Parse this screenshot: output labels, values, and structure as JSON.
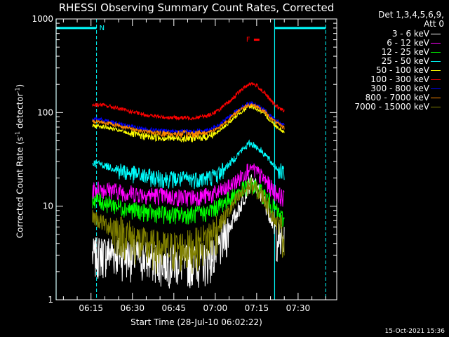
{
  "chart_data": {
    "type": "line",
    "title": "RHESSI Observing Summary Count Rates, Corrected",
    "xlabel": "Start Time (28-Jul-10 06:02:22)",
    "ylabel": "Corrected Count Rate (s^-1 detector^-1)",
    "y_scale": "log",
    "ylim": [
      1,
      1000
    ],
    "xlim": [
      "06:02:22",
      "07:44:00"
    ],
    "x_ticks": [
      "06:15",
      "06:30",
      "06:45",
      "07:00",
      "07:15",
      "07:30"
    ],
    "y_ticks": [
      "1",
      "10",
      "100",
      "1000"
    ],
    "detectors": "Det 1,3,4,5,6,9,",
    "attenuator": "Att 0",
    "timestamp": "15-Oct-2021 15:36",
    "data_interval": [
      "06:15:30",
      "07:25:00"
    ],
    "series": [
      {
        "name": "3 - 6 keV",
        "color": "#ffffff",
        "x": [
          "06:15:30",
          "06:18",
          "06:22",
          "06:28",
          "06:34",
          "06:40",
          "06:46",
          "06:52",
          "06:57",
          "07:01",
          "07:05",
          "07:09",
          "07:12",
          "07:13",
          "07:15",
          "07:18",
          "07:20",
          "07:22",
          "07:25"
        ],
        "y": [
          3,
          3.2,
          3.3,
          3.1,
          2.9,
          2.7,
          2.6,
          2.6,
          2.7,
          3.5,
          6,
          10,
          17,
          18,
          16,
          11,
          8,
          5,
          4
        ]
      },
      {
        "name": "6 - 12 keV",
        "color": "#ff00ff",
        "x": [
          "06:15:30",
          "06:18",
          "06:22",
          "06:28",
          "06:34",
          "06:40",
          "06:46",
          "06:52",
          "06:57",
          "07:01",
          "07:05",
          "07:09",
          "07:12",
          "07:13",
          "07:15",
          "07:18",
          "07:20",
          "07:22",
          "07:25"
        ],
        "y": [
          15,
          15.5,
          15,
          14,
          13.5,
          13,
          12.5,
          12.5,
          13,
          14,
          16,
          20,
          25,
          26,
          23,
          19,
          16,
          14,
          12
        ]
      },
      {
        "name": "12 - 25 keV",
        "color": "#00ff00",
        "x": [
          "06:15:30",
          "06:18",
          "06:22",
          "06:28",
          "06:34",
          "06:40",
          "06:46",
          "06:52",
          "06:57",
          "07:01",
          "07:05",
          "07:09",
          "07:12",
          "07:13",
          "07:15",
          "07:18",
          "07:20",
          "07:22",
          "07:25"
        ],
        "y": [
          12,
          11.5,
          10.5,
          9.5,
          8.7,
          8.3,
          8.1,
          8.2,
          8.6,
          10,
          12,
          14.5,
          16.5,
          17,
          15.5,
          13,
          11,
          9,
          7
        ]
      },
      {
        "name": "25 - 50 keV",
        "color": "#00ffff",
        "x": [
          "06:15:30",
          "06:18",
          "06:22",
          "06:28",
          "06:34",
          "06:40",
          "06:46",
          "06:52",
          "06:57",
          "07:01",
          "07:05",
          "07:09",
          "07:12",
          "07:13",
          "07:15",
          "07:18",
          "07:20",
          "07:22",
          "07:25"
        ],
        "y": [
          29,
          28.5,
          26,
          23,
          21,
          20,
          19.5,
          19.5,
          20,
          22,
          28,
          38,
          46,
          47,
          43,
          36,
          30,
          26,
          22
        ]
      },
      {
        "name": "50 - 100 keV",
        "color": "#ffff00",
        "x": [
          "06:15:30",
          "06:18",
          "06:22",
          "06:28",
          "06:34",
          "06:40",
          "06:46",
          "06:52",
          "06:57",
          "07:01",
          "07:05",
          "07:09",
          "07:12",
          "07:13",
          "07:15",
          "07:18",
          "07:20",
          "07:22",
          "07:25"
        ],
        "y": [
          72,
          72,
          68,
          61,
          56,
          54,
          53,
          53,
          55,
          62,
          78,
          100,
          115,
          117,
          110,
          95,
          82,
          72,
          62
        ]
      },
      {
        "name": "100 - 300 keV",
        "color": "#ff0000",
        "x": [
          "06:15:30",
          "06:18",
          "06:22",
          "06:28",
          "06:34",
          "06:40",
          "06:46",
          "06:52",
          "06:57",
          "07:01",
          "07:05",
          "07:09",
          "07:12",
          "07:13",
          "07:15",
          "07:18",
          "07:20",
          "07:22",
          "07:25"
        ],
        "y": [
          120,
          122,
          116,
          105,
          95,
          90,
          88,
          88,
          92,
          105,
          130,
          170,
          200,
          205,
          195,
          160,
          135,
          118,
          103
        ]
      },
      {
        "name": "300 - 800 keV",
        "color": "#0000ff",
        "x": [
          "06:15:30",
          "06:18",
          "06:22",
          "06:28",
          "06:34",
          "06:40",
          "06:46",
          "06:52",
          "06:57",
          "07:01",
          "07:05",
          "07:09",
          "07:12",
          "07:13",
          "07:15",
          "07:18",
          "07:20",
          "07:22",
          "07:25"
        ],
        "y": [
          85,
          85,
          80,
          73,
          67,
          64,
          63,
          63,
          65,
          72,
          90,
          112,
          125,
          127,
          120,
          105,
          92,
          82,
          73
        ]
      },
      {
        "name": "800 - 7000 keV",
        "color": "#ff8800",
        "x": [
          "06:15:30",
          "06:18",
          "06:22",
          "06:28",
          "06:34",
          "06:40",
          "06:46",
          "06:52",
          "06:57",
          "07:01",
          "07:05",
          "07:09",
          "07:12",
          "07:13",
          "07:15",
          "07:18",
          "07:20",
          "07:22",
          "07:25"
        ],
        "y": [
          80,
          80,
          76,
          69,
          63,
          60,
          59,
          59,
          61,
          68,
          85,
          108,
          121,
          123,
          116,
          101,
          88,
          78,
          69
        ]
      },
      {
        "name": "7000 - 15000 keV",
        "color": "#808000",
        "x": [
          "06:15:30",
          "06:18",
          "06:22",
          "06:28",
          "06:34",
          "06:40",
          "06:46",
          "06:52",
          "06:57",
          "07:01",
          "07:05",
          "07:09",
          "07:12",
          "07:13",
          "07:15",
          "07:18",
          "07:20",
          "07:22",
          "07:25"
        ],
        "y": [
          8,
          7,
          6,
          5,
          4,
          3.6,
          3.6,
          3.8,
          4.5,
          6,
          9,
          13,
          16,
          17,
          15,
          12,
          9,
          7,
          5
        ]
      }
    ],
    "intervals": [
      {
        "label": "N",
        "color": "#00ffff",
        "level": 800,
        "ranges": [
          [
            "06:02:22",
            "06:17:00"
          ],
          [
            "07:21:30",
            "07:40:00"
          ]
        ],
        "markers": [
          "06:17:00",
          "07:40:00"
        ]
      },
      {
        "label": "F",
        "color": "#ff0000",
        "level": 600,
        "ranges": [
          [
            "07:14:00",
            "07:16:00"
          ]
        ]
      }
    ],
    "vertical_lines": {
      "color": "#00ffff",
      "solid": [
        "06:02:22",
        "07:21:30"
      ],
      "dashed": [
        "06:17:00",
        "07:40:00"
      ]
    }
  }
}
